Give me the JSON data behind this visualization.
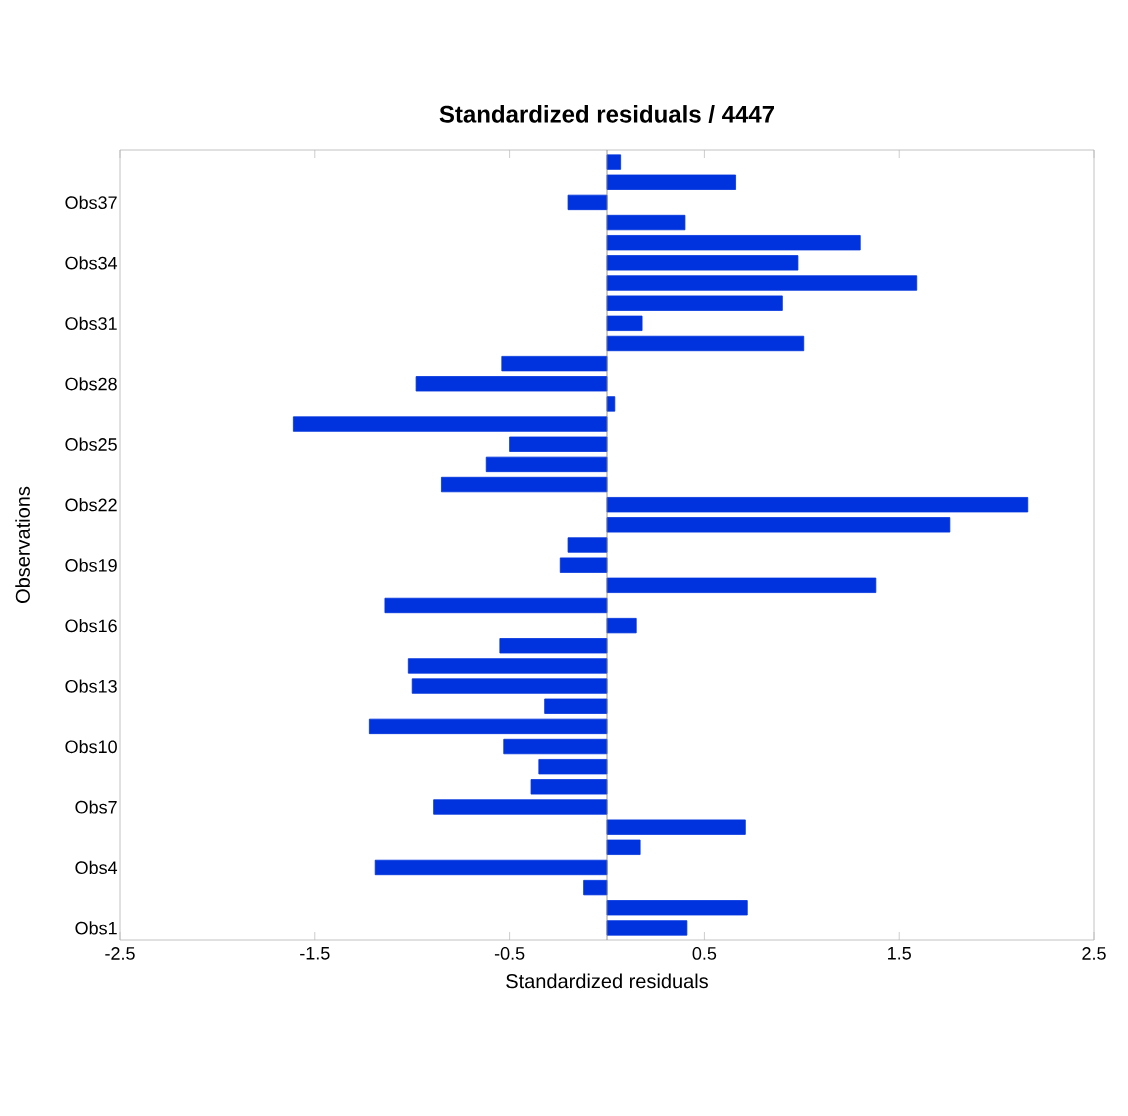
{
  "chart_data": {
    "type": "bar",
    "orientation": "horizontal",
    "title": "Standardized residuals / 4447",
    "xlabel": "Standardized residuals",
    "ylabel": "Observations",
    "categories": [
      null,
      null,
      "Obs37",
      null,
      null,
      "Obs34",
      null,
      null,
      "Obs31",
      null,
      null,
      "Obs28",
      null,
      null,
      "Obs25",
      null,
      null,
      "Obs22",
      null,
      null,
      "Obs19",
      null,
      null,
      "Obs16",
      null,
      null,
      "Obs13",
      null,
      null,
      "Obs10",
      null,
      null,
      "Obs7",
      null,
      null,
      "Obs4",
      null,
      null,
      "Obs1"
    ],
    "values": [
      0.07,
      0.66,
      -0.2,
      0.4,
      1.3,
      0.98,
      1.59,
      0.9,
      0.18,
      1.01,
      -0.54,
      -0.98,
      0.04,
      -1.61,
      -0.5,
      -0.62,
      -0.85,
      2.16,
      1.76,
      -0.2,
      -0.24,
      1.38,
      -1.14,
      0.15,
      -0.55,
      -1.02,
      -1.0,
      -0.32,
      -1.22,
      -0.53,
      -0.35,
      -0.39,
      -0.89,
      0.71,
      0.17,
      -1.19,
      -0.12,
      0.72,
      0.41
    ],
    "color": "#0033dd",
    "xlim": [
      -2.5,
      2.5
    ],
    "xticks": [
      -2.5,
      -1.5,
      -0.5,
      0.5,
      1.5,
      2.5
    ],
    "grid": false
  }
}
